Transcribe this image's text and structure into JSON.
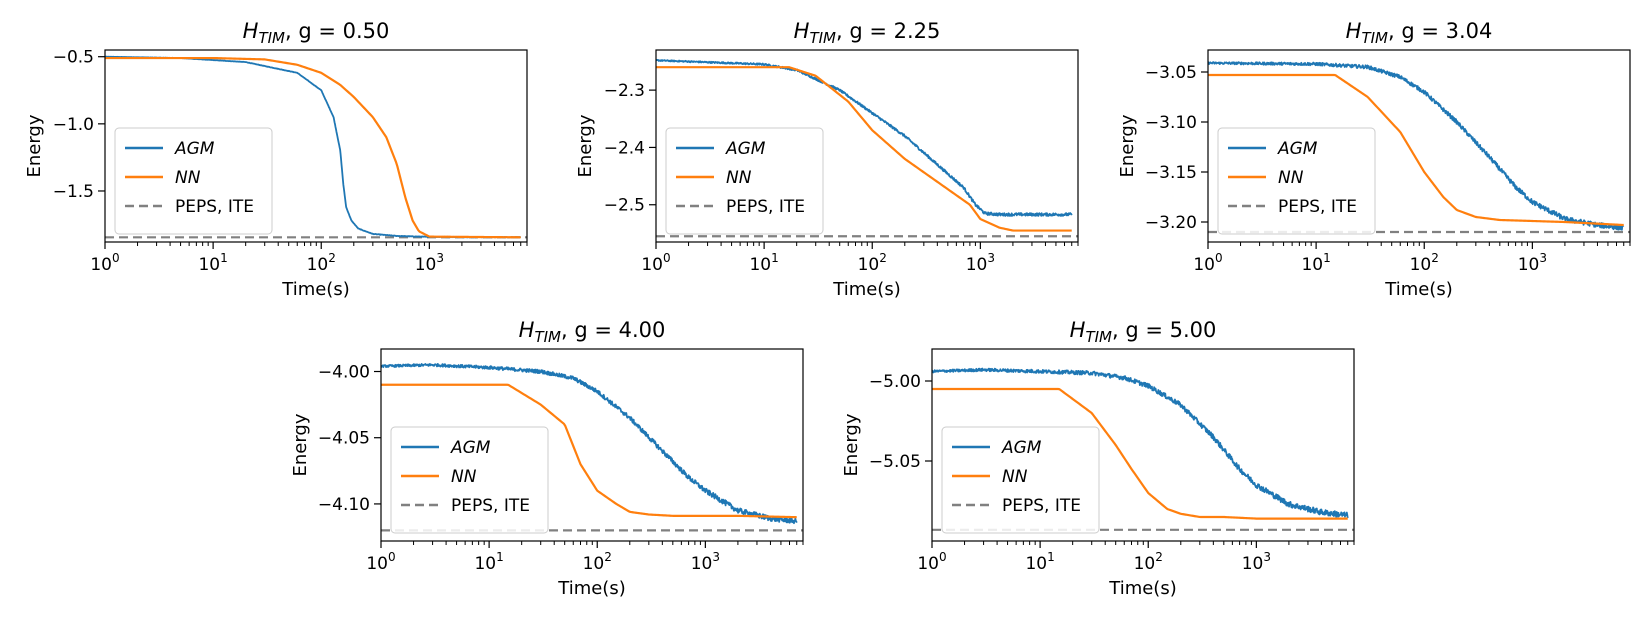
{
  "figure": {
    "legend_entries": [
      {
        "label": "AGM",
        "style": "solid",
        "color": "#1f77b4",
        "italic": true
      },
      {
        "label": "NN",
        "style": "solid",
        "color": "#ff7f0e",
        "italic": true
      },
      {
        "label": "PEPS, ITE",
        "style": "dashed",
        "color": "#808080",
        "italic": false
      }
    ]
  },
  "chart_data": [
    {
      "type": "line",
      "title": {
        "symbol": "H",
        "subscript": "TIM",
        "text": ", g = 0.50"
      },
      "xlabel": "Time(s)",
      "ylabel": "Energy",
      "xscale": "log",
      "xlim": [
        1,
        8000
      ],
      "ylim": [
        -1.88,
        -0.45
      ],
      "xticks": [
        {
          "value": 1,
          "base": "10",
          "exp": "0"
        },
        {
          "value": 10,
          "base": "10",
          "exp": "1"
        },
        {
          "value": 100,
          "base": "10",
          "exp": "2"
        },
        {
          "value": 1000,
          "base": "10",
          "exp": "3"
        }
      ],
      "yticks": [
        {
          "value": -0.5,
          "label": "−0.5"
        },
        {
          "value": -1.0,
          "label": "−1.0"
        },
        {
          "value": -1.5,
          "label": "−1.5"
        }
      ],
      "legend_position": "lower-left",
      "reference_line": {
        "name": "PEPS, ITE",
        "value": -1.845
      },
      "series": [
        {
          "name": "AGM",
          "color": "#1f77b4",
          "noise": 0.002,
          "x": [
            1,
            5,
            20,
            60,
            100,
            130,
            150,
            160,
            170,
            190,
            220,
            300,
            500,
            1000,
            7000
          ],
          "y": [
            -0.5,
            -0.51,
            -0.54,
            -0.62,
            -0.75,
            -0.95,
            -1.2,
            -1.45,
            -1.62,
            -1.72,
            -1.78,
            -1.82,
            -1.835,
            -1.842,
            -1.845
          ]
        },
        {
          "name": "NN",
          "color": "#ff7f0e",
          "noise": 0.0,
          "x": [
            1,
            10,
            30,
            60,
            100,
            150,
            200,
            300,
            400,
            500,
            600,
            700,
            800,
            1000,
            7000
          ],
          "y": [
            -0.51,
            -0.51,
            -0.52,
            -0.56,
            -0.62,
            -0.71,
            -0.8,
            -0.95,
            -1.1,
            -1.3,
            -1.55,
            -1.72,
            -1.8,
            -1.84,
            -1.845
          ]
        }
      ]
    },
    {
      "type": "line",
      "title": {
        "symbol": "H",
        "subscript": "TIM",
        "text": ", g = 2.25"
      },
      "xlabel": "Time(s)",
      "ylabel": "Energy",
      "xscale": "log",
      "xlim": [
        1,
        8000
      ],
      "ylim": [
        -2.565,
        -2.23
      ],
      "xticks": [
        {
          "value": 1,
          "base": "10",
          "exp": "0"
        },
        {
          "value": 10,
          "base": "10",
          "exp": "1"
        },
        {
          "value": 100,
          "base": "10",
          "exp": "2"
        },
        {
          "value": 1000,
          "base": "10",
          "exp": "3"
        }
      ],
      "yticks": [
        {
          "value": -2.3,
          "label": "−2.3"
        },
        {
          "value": -2.4,
          "label": "−2.4"
        },
        {
          "value": -2.5,
          "label": "−2.5"
        }
      ],
      "legend_position": "lower-left",
      "reference_line": {
        "name": "PEPS, ITE",
        "value": -2.555
      },
      "series": [
        {
          "name": "AGM",
          "color": "#1f77b4",
          "noise": 0.0025,
          "x": [
            1,
            10,
            20,
            50,
            100,
            200,
            400,
            700,
            900,
            1100,
            1500,
            7000
          ],
          "y": [
            -2.248,
            -2.255,
            -2.265,
            -2.3,
            -2.34,
            -2.38,
            -2.43,
            -2.47,
            -2.5,
            -2.515,
            -2.517,
            -2.517
          ]
        },
        {
          "name": "NN",
          "color": "#ff7f0e",
          "noise": 0.0,
          "x": [
            1,
            17,
            30,
            60,
            100,
            200,
            400,
            800,
            1000,
            1500,
            2000,
            7000
          ],
          "y": [
            -2.26,
            -2.26,
            -2.275,
            -2.32,
            -2.37,
            -2.42,
            -2.46,
            -2.5,
            -2.525,
            -2.54,
            -2.545,
            -2.545
          ]
        }
      ]
    },
    {
      "type": "line",
      "title": {
        "symbol": "H",
        "subscript": "TIM",
        "text": ", g = 3.04"
      },
      "xlabel": "Time(s)",
      "ylabel": "Energy",
      "xscale": "log",
      "xlim": [
        1,
        8000
      ],
      "ylim": [
        -3.22,
        -3.028
      ],
      "xticks": [
        {
          "value": 1,
          "base": "10",
          "exp": "0"
        },
        {
          "value": 10,
          "base": "10",
          "exp": "1"
        },
        {
          "value": 100,
          "base": "10",
          "exp": "2"
        },
        {
          "value": 1000,
          "base": "10",
          "exp": "3"
        }
      ],
      "yticks": [
        {
          "value": -3.05,
          "label": "−3.05"
        },
        {
          "value": -3.1,
          "label": "−3.10"
        },
        {
          "value": -3.15,
          "label": "−3.15"
        },
        {
          "value": -3.2,
          "label": "−3.20"
        }
      ],
      "legend_position": "lower-left",
      "reference_line": {
        "name": "PEPS, ITE",
        "value": -3.21
      },
      "series": [
        {
          "name": "AGM",
          "color": "#1f77b4",
          "noise": 0.0025,
          "x": [
            1,
            10,
            30,
            60,
            100,
            200,
            400,
            700,
            1000,
            2000,
            4000,
            7000
          ],
          "y": [
            -3.041,
            -3.042,
            -3.045,
            -3.055,
            -3.07,
            -3.1,
            -3.135,
            -3.165,
            -3.18,
            -3.197,
            -3.203,
            -3.206
          ]
        },
        {
          "name": "NN",
          "color": "#ff7f0e",
          "noise": 0.0,
          "x": [
            1,
            15,
            30,
            60,
            100,
            150,
            200,
            300,
            500,
            1000,
            2000,
            7000
          ],
          "y": [
            -3.053,
            -3.053,
            -3.075,
            -3.11,
            -3.15,
            -3.175,
            -3.188,
            -3.195,
            -3.198,
            -3.199,
            -3.2,
            -3.203
          ]
        }
      ]
    },
    {
      "type": "line",
      "title": {
        "symbol": "H",
        "subscript": "TIM",
        "text": ", g = 4.00"
      },
      "xlabel": "Time(s)",
      "ylabel": "Energy",
      "xscale": "log",
      "xlim": [
        1,
        8000
      ],
      "ylim": [
        -4.128,
        -3.983
      ],
      "xticks": [
        {
          "value": 1,
          "base": "10",
          "exp": "0"
        },
        {
          "value": 10,
          "base": "10",
          "exp": "1"
        },
        {
          "value": 100,
          "base": "10",
          "exp": "2"
        },
        {
          "value": 1000,
          "base": "10",
          "exp": "3"
        }
      ],
      "yticks": [
        {
          "value": -4.0,
          "label": "−4.00"
        },
        {
          "value": -4.05,
          "label": "−4.05"
        },
        {
          "value": -4.1,
          "label": "−4.10"
        }
      ],
      "legend_position": "lower-left",
      "reference_line": {
        "name": "PEPS, ITE",
        "value": -4.12
      },
      "series": [
        {
          "name": "AGM",
          "color": "#1f77b4",
          "noise": 0.002,
          "x": [
            1,
            3,
            10,
            30,
            60,
            100,
            200,
            400,
            700,
            1000,
            2000,
            4000,
            7000
          ],
          "y": [
            -3.996,
            -3.995,
            -3.997,
            -4.0,
            -4.005,
            -4.015,
            -4.035,
            -4.06,
            -4.08,
            -4.09,
            -4.105,
            -4.111,
            -4.113
          ]
        },
        {
          "name": "NN",
          "color": "#ff7f0e",
          "noise": 0.0,
          "x": [
            1,
            15,
            30,
            50,
            70,
            100,
            150,
            200,
            300,
            500,
            1000,
            2000,
            7000
          ],
          "y": [
            -4.01,
            -4.01,
            -4.025,
            -4.04,
            -4.07,
            -4.09,
            -4.1,
            -4.106,
            -4.108,
            -4.109,
            -4.109,
            -4.109,
            -4.11
          ]
        }
      ]
    },
    {
      "type": "line",
      "title": {
        "symbol": "H",
        "subscript": "TIM",
        "text": ", g = 5.00"
      },
      "xlabel": "Time(s)",
      "ylabel": "Energy",
      "xscale": "log",
      "xlim": [
        1,
        8000
      ],
      "ylim": [
        -5.1,
        -4.98
      ],
      "xticks": [
        {
          "value": 1,
          "base": "10",
          "exp": "0"
        },
        {
          "value": 10,
          "base": "10",
          "exp": "1"
        },
        {
          "value": 100,
          "base": "10",
          "exp": "2"
        },
        {
          "value": 1000,
          "base": "10",
          "exp": "3"
        }
      ],
      "yticks": [
        {
          "value": -5.0,
          "label": "−5.00"
        },
        {
          "value": -5.05,
          "label": "−5.05"
        }
      ],
      "legend_position": "lower-left",
      "reference_line": {
        "name": "PEPS, ITE",
        "value": -5.093
      },
      "series": [
        {
          "name": "AGM",
          "color": "#1f77b4",
          "noise": 0.0018,
          "x": [
            1,
            3,
            10,
            30,
            60,
            100,
            200,
            400,
            700,
            1000,
            2000,
            4000,
            7000
          ],
          "y": [
            -4.994,
            -4.993,
            -4.994,
            -4.995,
            -4.998,
            -5.003,
            -5.015,
            -5.035,
            -5.055,
            -5.065,
            -5.077,
            -5.082,
            -5.084
          ]
        },
        {
          "name": "NN",
          "color": "#ff7f0e",
          "noise": 0.0,
          "x": [
            1,
            15,
            30,
            50,
            70,
            100,
            150,
            200,
            300,
            500,
            1000,
            2000,
            7000
          ],
          "y": [
            -5.005,
            -5.005,
            -5.02,
            -5.04,
            -5.055,
            -5.07,
            -5.08,
            -5.083,
            -5.085,
            -5.085,
            -5.086,
            -5.086,
            -5.086
          ]
        }
      ]
    }
  ]
}
